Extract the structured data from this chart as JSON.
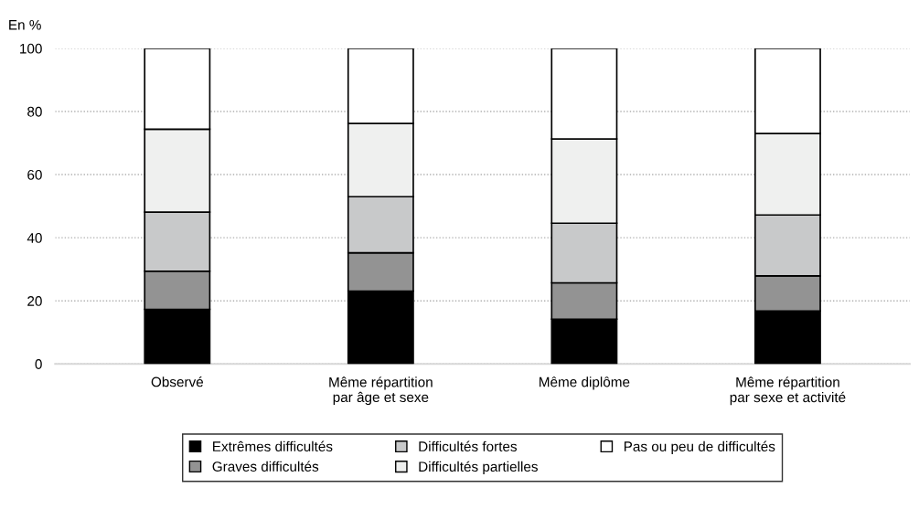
{
  "chart_data": {
    "type": "bar",
    "stacked": true,
    "ylabel": "En %",
    "categories": [
      "Observé",
      "Même répartition\npar âge et sexe",
      "Même diplôme",
      "Même répartition\npar sexe et activité"
    ],
    "series": [
      {
        "name": "Extrêmes difficultés",
        "color": "#000000",
        "values": [
          17.3,
          23.1,
          14.2,
          16.8
        ]
      },
      {
        "name": "Graves difficultés",
        "color": "#939393",
        "values": [
          12.1,
          12.1,
          11.5,
          11.1
        ]
      },
      {
        "name": "Difficultés fortes",
        "color": "#c8c9ca",
        "values": [
          18.7,
          17.8,
          18.9,
          19.3
        ]
      },
      {
        "name": "Difficultés partielles",
        "color": "#eff0ef",
        "values": [
          26.3,
          23.2,
          26.7,
          25.8
        ]
      },
      {
        "name": "Pas ou peu de difficultés",
        "color": "#ffffff",
        "values": [
          25.6,
          23.8,
          28.7,
          27.0
        ]
      }
    ],
    "ylim": [
      0,
      100
    ],
    "yticks": [
      0,
      20,
      40,
      60,
      80,
      100
    ],
    "grid": "y",
    "legend": "bottom"
  }
}
